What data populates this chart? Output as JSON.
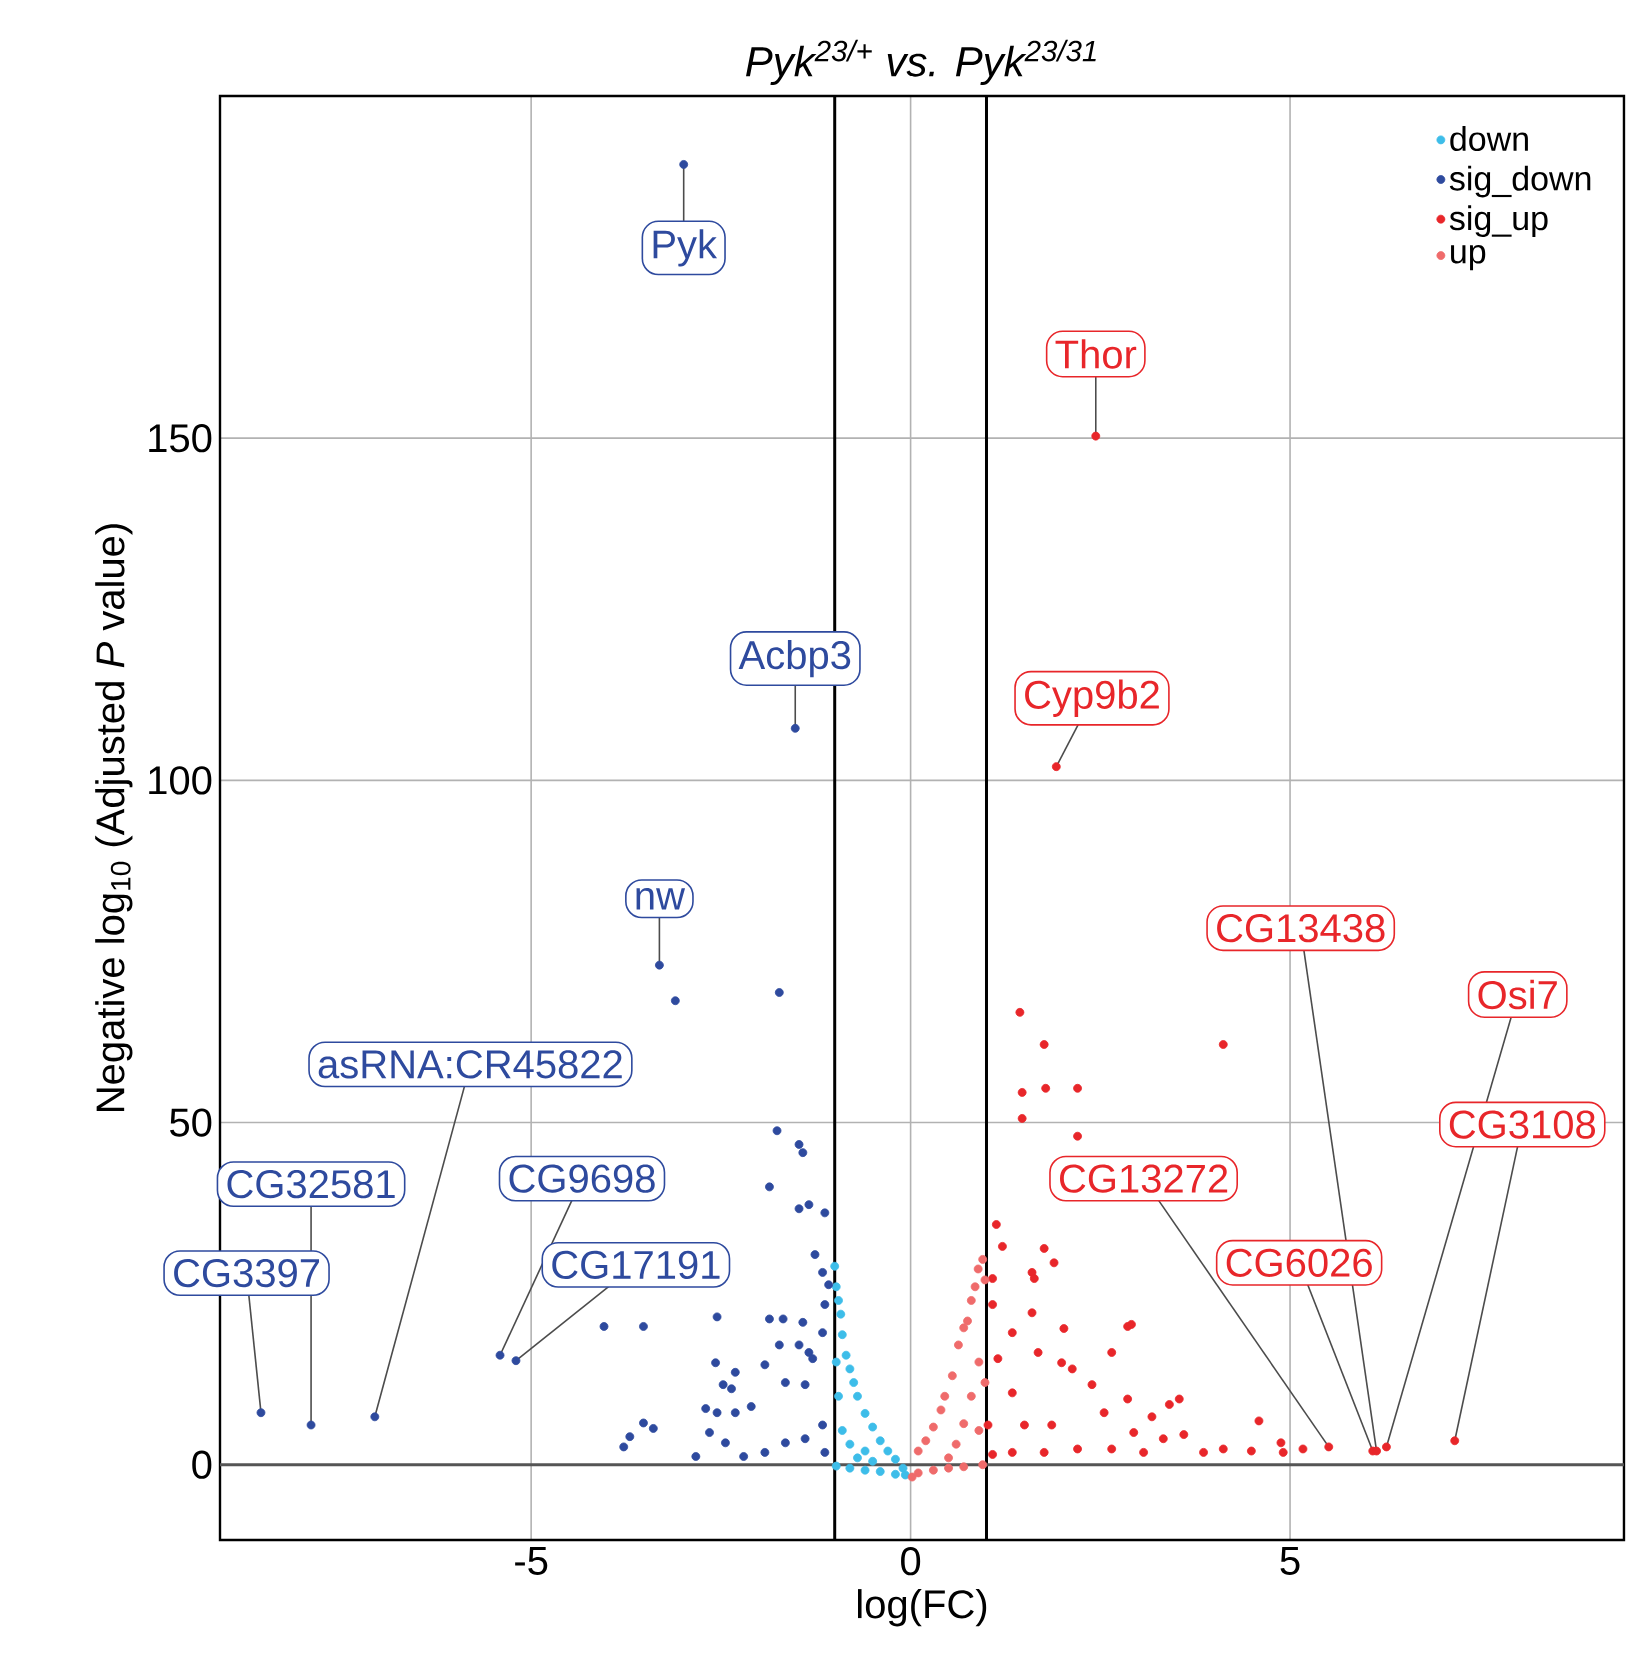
{
  "chart_data": {
    "type": "scatter",
    "title": "*Pyk*$^{23/+}$ *vs. Pyk*$^{23/31}$",
    "xlabel": "log(FC)",
    "ylabel": "Negative log$_{10}$ (Adjusted *P* value)",
    "xlim": [
      -9.1,
      9.4
    ],
    "ylim": [
      -11,
      200
    ],
    "xticks": [
      -5,
      0,
      5
    ],
    "yticks": [
      0,
      50,
      100,
      150
    ],
    "grid": true,
    "legend": "top right",
    "marker": "circle",
    "ref_lines": [
      {
        "axis": "x",
        "value": -1,
        "color": "#000000"
      },
      {
        "axis": "x",
        "value": 1,
        "color": "#000000"
      },
      {
        "axis": "y",
        "value": 0,
        "color": "#555555"
      }
    ],
    "series": [
      {
        "name": "down",
        "color": "#3dbde9",
        "x": [
          -1.0,
          -0.98,
          -0.95,
          -0.92,
          -0.9,
          -0.85,
          -0.8,
          -0.75,
          -0.7,
          -0.6,
          -0.5,
          -0.4,
          -0.3,
          -0.2,
          -0.1,
          -0.07,
          -0.2,
          -0.4,
          -0.6,
          -0.8,
          -0.98,
          -0.95,
          -0.9,
          -0.8,
          -0.7,
          -0.6,
          -0.98,
          -0.5
        ],
        "values": [
          29,
          26,
          24,
          22,
          19,
          16,
          14,
          12,
          10,
          7.5,
          5.5,
          3.5,
          2,
          0.8,
          -0.5,
          -1.5,
          -1.4,
          -1.0,
          -0.8,
          -0.5,
          -0.2,
          10,
          5,
          3,
          1,
          2,
          15,
          0.5
        ]
      },
      {
        "name": "sig_down",
        "color": "#2e4a9e",
        "x": [
          -2.99,
          -1.52,
          -3.31,
          -8.56,
          -7.9,
          -7.06,
          -5.41,
          -5.2,
          -3.1,
          -1.73,
          -1.76,
          -1.47,
          -1.42,
          -1.86,
          -1.47,
          -1.34,
          -1.13,
          -1.26,
          -1.16,
          -1.08,
          -4.04,
          -3.52,
          -2.55,
          -1.86,
          -1.68,
          -1.42,
          -1.73,
          -1.47,
          -1.34,
          -2.57,
          -2.31,
          -1.92,
          -2.47,
          -2.36,
          -1.65,
          -1.39,
          -2.7,
          -2.55,
          -2.31,
          -2.1,
          -3.52,
          -3.39,
          -3.7,
          -3.78,
          -2.65,
          -2.44,
          -2.83,
          -2.2,
          -1.92,
          -1.65,
          -1.39,
          -1.16,
          -1.13,
          -1.29,
          -1.16,
          -1.13
        ],
        "values": [
          190,
          107.6,
          73,
          7.6,
          5.8,
          7,
          16,
          15.2,
          67.8,
          69,
          48.8,
          46.8,
          45.6,
          40.6,
          37.4,
          38,
          36.8,
          30.7,
          28.1,
          26.3,
          20.2,
          20.2,
          21.6,
          21.3,
          21.3,
          20.8,
          17.5,
          17.5,
          16.4,
          14.9,
          13.5,
          14.6,
          11.7,
          11.1,
          12,
          11.7,
          8.2,
          7.6,
          7.6,
          8.5,
          6.1,
          5.3,
          4.1,
          2.6,
          4.7,
          3.2,
          1.2,
          1.2,
          1.8,
          3.2,
          3.8,
          5.8,
          1.8,
          15.5,
          19.3,
          23.4
        ]
      },
      {
        "name": "sig_up",
        "color": "#e8262a",
        "x": [
          2.44,
          1.92,
          5.51,
          6.09,
          6.14,
          6.27,
          7.17,
          1.44,
          1.76,
          4.12,
          1.47,
          1.78,
          2.2,
          1.47,
          2.2,
          1.13,
          1.21,
          1.76,
          1.89,
          1.6,
          1.63,
          1.08,
          1.6,
          2.02,
          2.86,
          2.91,
          1.34,
          1.68,
          1.99,
          2.13,
          2.65,
          2.39,
          2.86,
          2.55,
          3.18,
          3.54,
          3.41,
          4.59,
          2.94,
          3.33,
          3.6,
          3.86,
          4.12,
          4.49,
          4.88,
          4.91,
          5.17,
          3.07,
          2.65,
          2.2,
          1.76,
          1.34,
          1.08,
          1.02,
          1.5,
          1.15,
          1.34,
          1.86,
          1.08
        ],
        "values": [
          150.3,
          102,
          2.6,
          2.0,
          2.0,
          2.6,
          3.5,
          66.1,
          61.4,
          61.4,
          54.4,
          55,
          55,
          50.6,
          48,
          35.1,
          31.9,
          31.6,
          29.5,
          28.1,
          27.2,
          27.2,
          22.2,
          19.9,
          20.2,
          20.5,
          19.3,
          16.4,
          14.9,
          14,
          16.4,
          11.7,
          9.6,
          7.6,
          7,
          9.6,
          8.8,
          6.4,
          4.7,
          3.8,
          4.4,
          1.8,
          2.3,
          2.0,
          3.2,
          1.8,
          2.3,
          1.8,
          2.3,
          2.3,
          1.8,
          1.8,
          1.5,
          5.8,
          5.8,
          15.5,
          10.5,
          5.8,
          23.4
        ]
      },
      {
        "name": "up",
        "color": "#ef6b6b",
        "x": [
          0.02,
          0.1,
          0.3,
          0.5,
          0.7,
          0.95,
          0.1,
          0.2,
          0.3,
          0.4,
          0.45,
          0.55,
          0.63,
          0.7,
          0.75,
          0.8,
          0.85,
          0.89,
          0.95,
          0.98,
          0.9,
          0.8,
          0.7,
          0.6,
          0.5,
          0.9,
          0.98
        ],
        "values": [
          -1.8,
          -1.2,
          -0.8,
          -0.5,
          -0.3,
          0,
          2,
          3.5,
          5.5,
          8,
          10,
          13,
          17.5,
          20,
          21,
          24,
          26,
          28.6,
          30,
          27,
          15,
          10,
          6,
          3,
          1,
          5,
          12
        ]
      }
    ],
    "annotations": [
      {
        "text": "Pyk",
        "x": -2.99,
        "y": 190
      },
      {
        "text": "Thor",
        "x": 2.44,
        "y": 150.3
      },
      {
        "text": "Acbp3",
        "x": -1.52,
        "y": 107.6
      },
      {
        "text": "Cyp9b2",
        "x": 1.92,
        "y": 102
      },
      {
        "text": "nw",
        "x": -3.31,
        "y": 73
      },
      {
        "text": "asRNA:CR45822",
        "x": -7.06,
        "y": 7
      },
      {
        "text": "CG32581",
        "x": -7.9,
        "y": 5.8
      },
      {
        "text": "CG3397",
        "x": -8.56,
        "y": 7.6
      },
      {
        "text": "CG9698",
        "x": -5.41,
        "y": 16
      },
      {
        "text": "CG17191",
        "x": -5.2,
        "y": 15.2
      },
      {
        "text": "CG13438",
        "x": 6.14,
        "y": 2.0
      },
      {
        "text": "Osi7",
        "x": 6.27,
        "y": 2.6
      },
      {
        "text": "CG3108",
        "x": 7.17,
        "y": 3.5
      },
      {
        "text": "CG13272",
        "x": 5.51,
        "y": 2.6
      },
      {
        "text": "CG6026",
        "x": 6.09,
        "y": 2.0
      }
    ]
  }
}
